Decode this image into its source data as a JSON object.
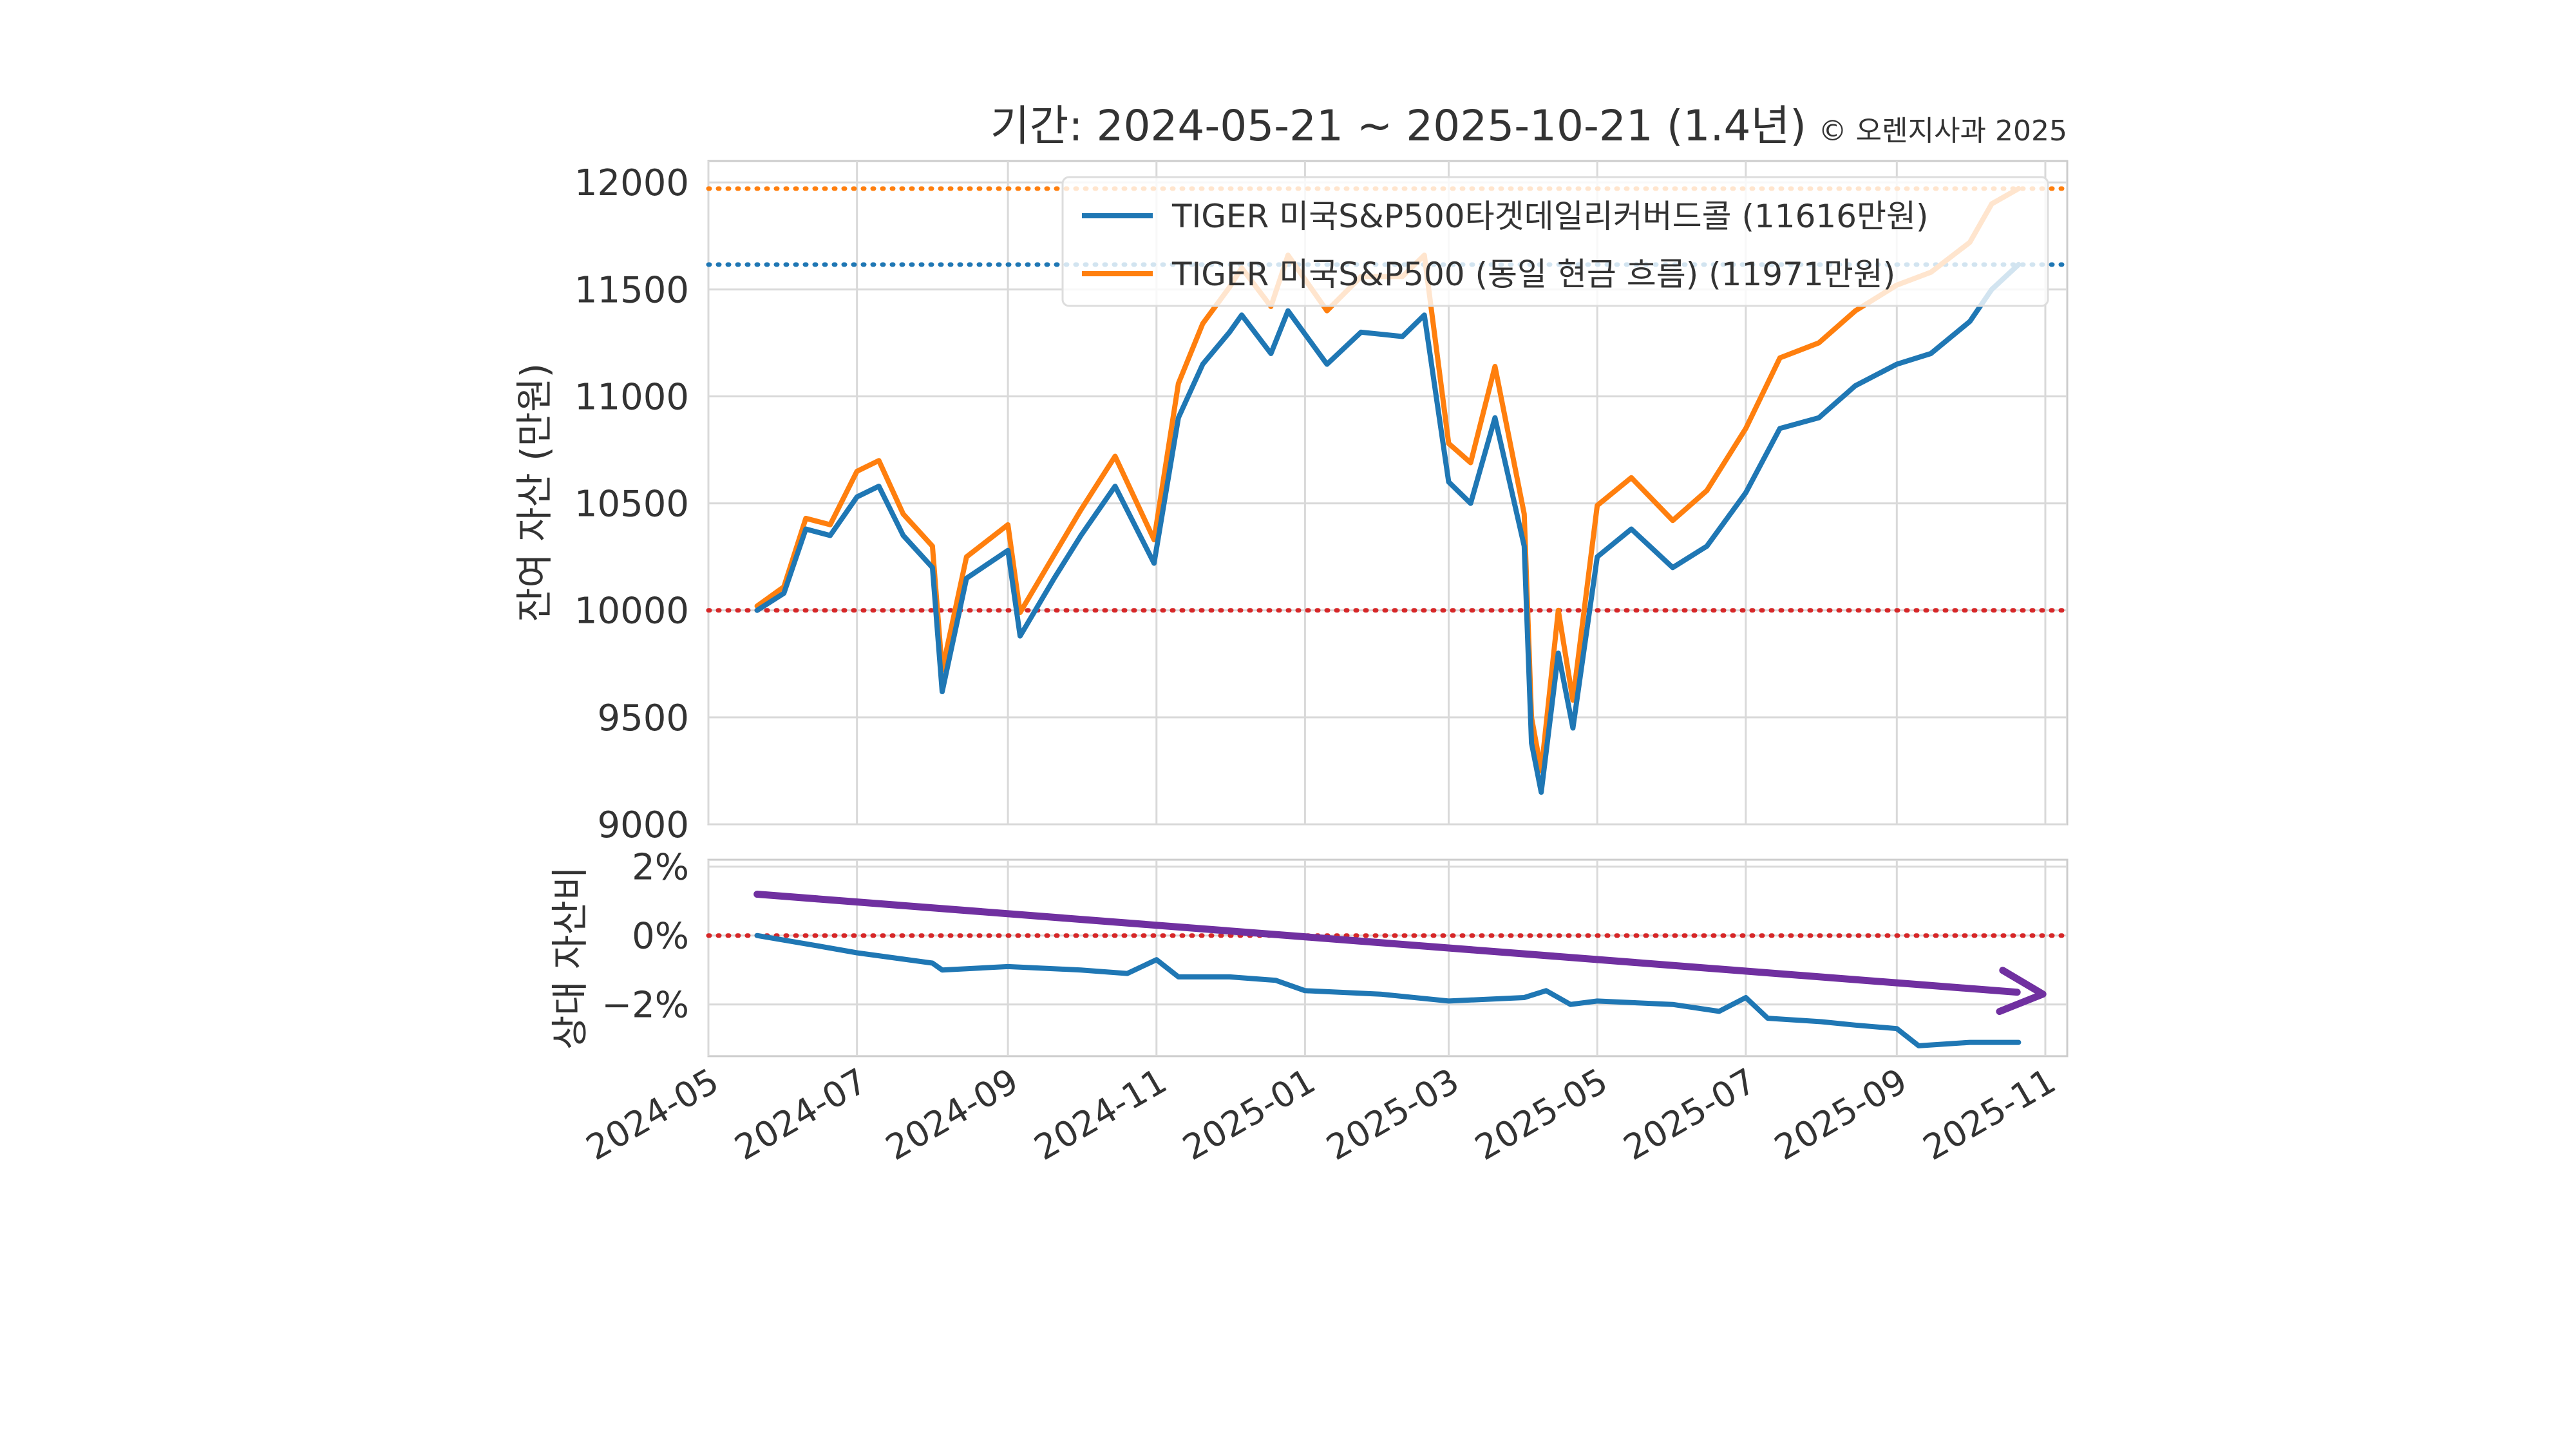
{
  "chart_data": [
    {
      "type": "line",
      "title": "기간: 2024-05-21 ~ 2025-10-21 (1.4년)",
      "copyright": "© 오렌지사과 2025",
      "ylabel": "잔여 자산 (만원)",
      "ylim": [
        9000,
        12100
      ],
      "yticks": [
        9000,
        9500,
        10000,
        10500,
        11000,
        11500,
        12000
      ],
      "xlim": [
        "2024-05-01",
        "2025-11-10"
      ],
      "x_tick_labels": [
        "2024-05",
        "2024-07",
        "2024-09",
        "2024-11",
        "2025-01",
        "2025-03",
        "2025-05",
        "2025-07",
        "2025-09",
        "2025-11"
      ],
      "grid": true,
      "legend_position": "top-right",
      "reference_lines": [
        {
          "y": 10000,
          "color": "#d62728",
          "style": "dotted"
        },
        {
          "y": 11616,
          "color": "#1f77b4",
          "style": "dotted"
        },
        {
          "y": 11971,
          "color": "#ff7f0e",
          "style": "dotted"
        }
      ],
      "series": [
        {
          "name": "TIGER 미국S&P500타겟데일리커버드콜 (11616만원)",
          "color": "#1f77b4",
          "x": [
            "2024-05-21",
            "2024-06-01",
            "2024-06-10",
            "2024-06-20",
            "2024-07-01",
            "2024-07-10",
            "2024-07-20",
            "2024-08-01",
            "2024-08-05",
            "2024-08-15",
            "2024-09-01",
            "2024-09-06",
            "2024-09-20",
            "2024-10-01",
            "2024-10-15",
            "2024-10-31",
            "2024-11-10",
            "2024-11-20",
            "2024-12-01",
            "2024-12-06",
            "2024-12-18",
            "2024-12-25",
            "2025-01-10",
            "2025-01-24",
            "2025-02-10",
            "2025-02-19",
            "2025-03-01",
            "2025-03-10",
            "2025-03-20",
            "2025-04-01",
            "2025-04-04",
            "2025-04-08",
            "2025-04-15",
            "2025-04-21",
            "2025-05-01",
            "2025-05-15",
            "2025-06-01",
            "2025-06-15",
            "2025-07-01",
            "2025-07-15",
            "2025-07-31",
            "2025-08-15",
            "2025-09-01",
            "2025-09-15",
            "2025-10-01",
            "2025-10-10",
            "2025-10-21"
          ],
          "values": [
            10000,
            10080,
            10380,
            10350,
            10530,
            10580,
            10350,
            10200,
            9620,
            10150,
            10280,
            9880,
            10150,
            10350,
            10580,
            10220,
            10900,
            11150,
            11300,
            11380,
            11200,
            11400,
            11150,
            11300,
            11280,
            11380,
            10600,
            10500,
            10900,
            10300,
            9380,
            9150,
            9800,
            9450,
            10250,
            10380,
            10200,
            10300,
            10550,
            10850,
            10900,
            11050,
            11150,
            11200,
            11350,
            11500,
            11616
          ]
        },
        {
          "name": "TIGER 미국S&P500 (동일 현금 흐름) (11971만원)",
          "color": "#ff7f0e",
          "x": [
            "2024-05-21",
            "2024-06-01",
            "2024-06-10",
            "2024-06-20",
            "2024-07-01",
            "2024-07-10",
            "2024-07-20",
            "2024-08-01",
            "2024-08-05",
            "2024-08-15",
            "2024-09-01",
            "2024-09-06",
            "2024-09-20",
            "2024-10-01",
            "2024-10-15",
            "2024-10-31",
            "2024-11-10",
            "2024-11-20",
            "2024-12-01",
            "2024-12-06",
            "2024-12-18",
            "2024-12-25",
            "2025-01-10",
            "2025-01-24",
            "2025-02-10",
            "2025-02-19",
            "2025-03-01",
            "2025-03-10",
            "2025-03-20",
            "2025-04-01",
            "2025-04-04",
            "2025-04-08",
            "2025-04-15",
            "2025-04-21",
            "2025-05-01",
            "2025-05-15",
            "2025-06-01",
            "2025-06-15",
            "2025-07-01",
            "2025-07-15",
            "2025-07-31",
            "2025-08-15",
            "2025-09-01",
            "2025-09-15",
            "2025-10-01",
            "2025-10-10",
            "2025-10-21"
          ],
          "values": [
            10020,
            10110,
            10430,
            10400,
            10650,
            10700,
            10450,
            10300,
            9720,
            10250,
            10400,
            9990,
            10260,
            10470,
            10720,
            10330,
            11060,
            11340,
            11510,
            11600,
            11420,
            11660,
            11400,
            11560,
            11560,
            11660,
            10780,
            10690,
            11140,
            10450,
            9500,
            9250,
            10000,
            9580,
            10490,
            10620,
            10420,
            10560,
            10850,
            11180,
            11250,
            11400,
            11520,
            11580,
            11720,
            11900,
            11971
          ]
        }
      ]
    },
    {
      "type": "line",
      "ylabel": "상대 자산비",
      "ylim": [
        -3.5,
        2.2
      ],
      "yticks": [
        2,
        0,
        -2
      ],
      "ytick_labels": [
        "2%",
        "0%",
        "−2%"
      ],
      "reference_lines": [
        {
          "y": 0,
          "color": "#d62728",
          "style": "dotted"
        }
      ],
      "trend_arrow": {
        "from": [
          "2024-05-21",
          1.2
        ],
        "to": [
          "2025-10-31",
          -1.7
        ],
        "color": "#7030a0"
      },
      "series": [
        {
          "color": "#1f77b4",
          "x": [
            "2024-05-21",
            "2024-06-15",
            "2024-07-01",
            "2024-08-01",
            "2024-08-05",
            "2024-09-01",
            "2024-10-01",
            "2024-10-20",
            "2024-11-01",
            "2024-11-10",
            "2024-12-01",
            "2024-12-20",
            "2025-01-01",
            "2025-02-01",
            "2025-03-01",
            "2025-04-01",
            "2025-04-10",
            "2025-04-20",
            "2025-05-01",
            "2025-06-01",
            "2025-06-20",
            "2025-07-01",
            "2025-07-10",
            "2025-08-01",
            "2025-08-15",
            "2025-09-01",
            "2025-09-10",
            "2025-10-01",
            "2025-10-21"
          ],
          "values": [
            0,
            -0.3,
            -0.5,
            -0.8,
            -1.0,
            -0.9,
            -1.0,
            -1.1,
            -0.7,
            -1.2,
            -1.2,
            -1.3,
            -1.6,
            -1.7,
            -1.9,
            -1.8,
            -1.6,
            -2.0,
            -1.9,
            -2.0,
            -2.2,
            -1.8,
            -2.4,
            -2.5,
            -2.6,
            -2.7,
            -3.2,
            -3.1,
            -3.1
          ]
        }
      ]
    }
  ]
}
